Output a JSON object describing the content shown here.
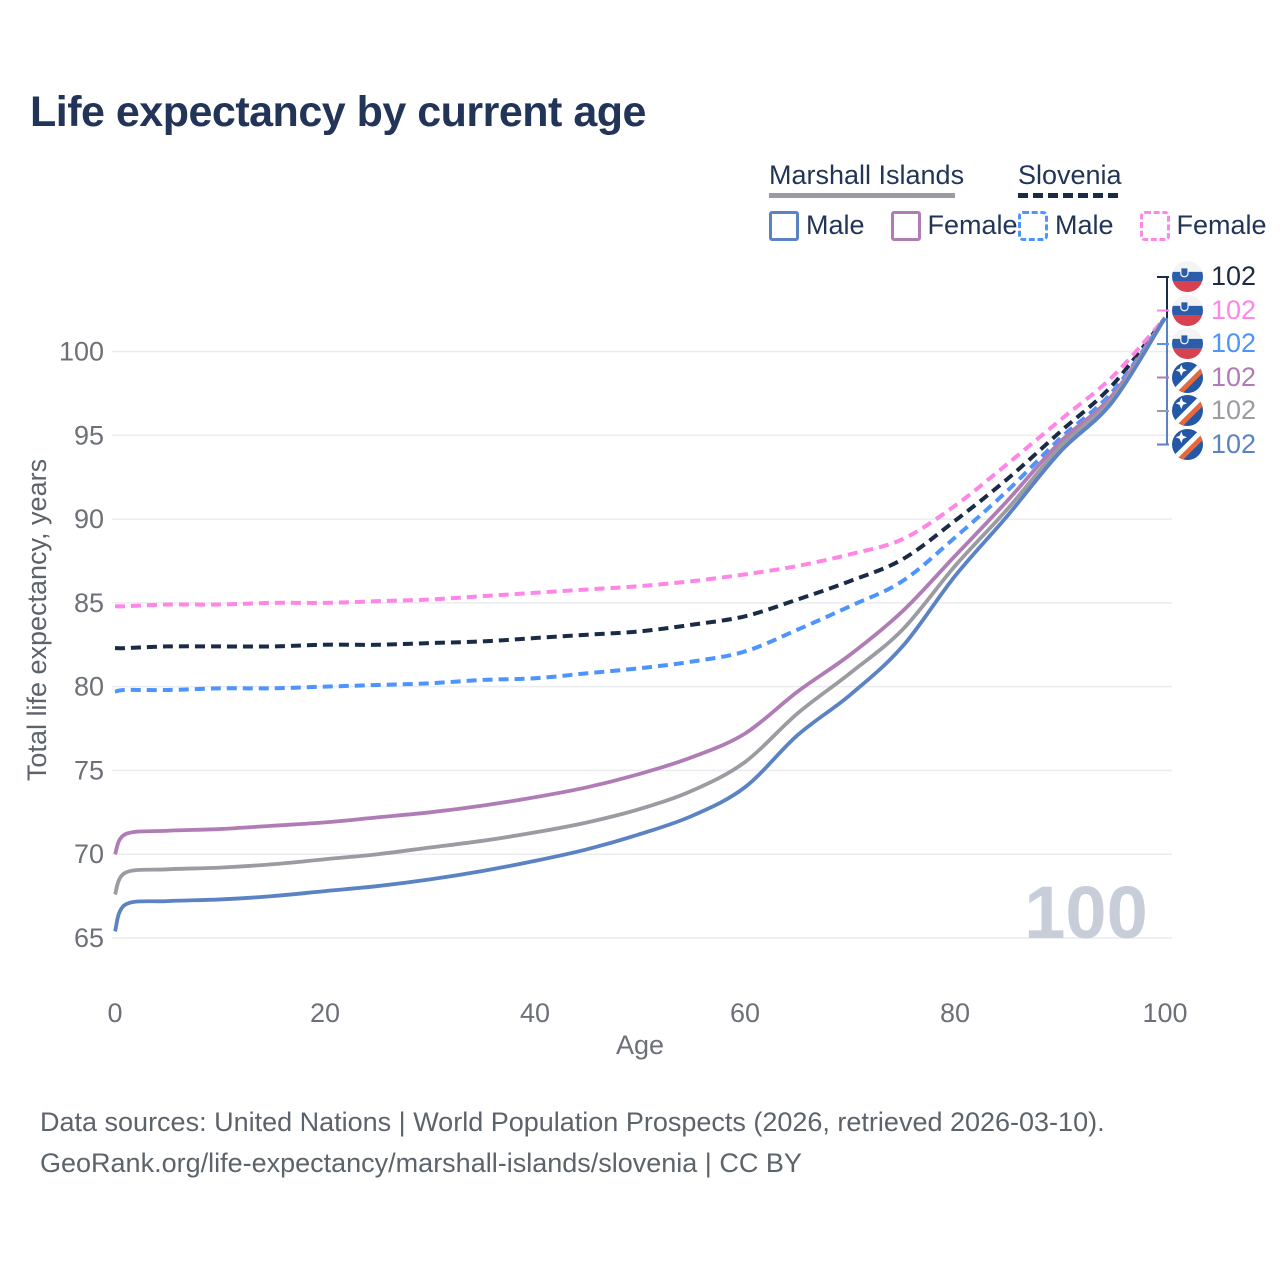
{
  "title": "Life expectancy by current age",
  "legend": {
    "marshall": {
      "label": "Marshall Islands",
      "male": "Male",
      "female": "Female"
    },
    "slovenia": {
      "label": "Slovenia",
      "male": "Male",
      "female": "Female"
    }
  },
  "watermark": "100",
  "footer": {
    "line1": "Data sources: United Nations | World Population Prospects (2026, retrieved 2026-03-10).",
    "line2": "GeoRank.org/life-expectancy/marshall-islands/slovenia | CC BY"
  },
  "colors": {
    "title_navy": "#223457",
    "tick_gray": "#6d7177",
    "axis_label_gray": "#5d636b",
    "gridline": "#ebecf0",
    "watermark_gray": "#c8cdda",
    "marshall_underline": "#9aa0a6",
    "slovenia_underline": "#1b2a45",
    "slovenia_flag": [
      "#f4f4f4",
      "#2b5dab",
      "#d8414f"
    ],
    "marshall_flag": [
      "#2457a5",
      "#ffffff",
      "#e8683a"
    ]
  },
  "chart_data": {
    "type": "line",
    "title": "Life expectancy by current age",
    "xlabel": "Age",
    "ylabel": "Total life expectancy, years",
    "xlim": [
      0,
      100
    ],
    "ylim": [
      65,
      102
    ],
    "x_ticks": [
      0,
      20,
      40,
      60,
      80,
      100
    ],
    "y_ticks": [
      65,
      70,
      75,
      80,
      85,
      90,
      95,
      100
    ],
    "grid": "horizontal-only",
    "legend_position": "top-right",
    "ages": [
      0,
      1,
      5,
      10,
      15,
      20,
      25,
      30,
      35,
      40,
      45,
      50,
      55,
      60,
      65,
      70,
      75,
      80,
      85,
      90,
      95,
      100
    ],
    "series": [
      {
        "id": "si-total",
        "name": "Slovenia — Total",
        "country": "Slovenia",
        "sex": "Total",
        "flag": "si",
        "color": "#1b2a45",
        "dashed": true,
        "end_label": "102",
        "values": [
          82.3,
          82.3,
          82.4,
          82.4,
          82.4,
          82.5,
          82.5,
          82.6,
          82.7,
          82.9,
          83.1,
          83.3,
          83.7,
          84.2,
          85.2,
          86.3,
          87.6,
          89.9,
          92.4,
          95.2,
          98.0,
          102
        ]
      },
      {
        "id": "si-female",
        "name": "Slovenia — Female",
        "country": "Slovenia",
        "sex": "Female",
        "flag": "si",
        "color": "#ff85e6",
        "dashed": true,
        "end_label": "102",
        "values": [
          84.8,
          84.8,
          84.9,
          84.9,
          85.0,
          85.0,
          85.1,
          85.2,
          85.4,
          85.6,
          85.8,
          86.0,
          86.3,
          86.7,
          87.2,
          87.9,
          88.8,
          90.8,
          93.3,
          95.9,
          98.5,
          102
        ]
      },
      {
        "id": "si-male",
        "name": "Slovenia — Male",
        "country": "Slovenia",
        "sex": "Male",
        "flag": "si",
        "color": "#4d94ff",
        "dashed": true,
        "end_label": "102",
        "values": [
          79.7,
          79.8,
          79.8,
          79.9,
          79.9,
          80.0,
          80.1,
          80.2,
          80.4,
          80.5,
          80.8,
          81.1,
          81.5,
          82.1,
          83.4,
          84.8,
          86.3,
          88.9,
          91.7,
          94.8,
          97.6,
          102
        ]
      },
      {
        "id": "mi-female",
        "name": "Marshall Islands — Female",
        "country": "Marshall Islands",
        "sex": "Female",
        "flag": "mh",
        "color": "#b07cb5",
        "dashed": false,
        "end_label": "102",
        "values": [
          70.0,
          71.2,
          71.4,
          71.5,
          71.7,
          71.9,
          72.2,
          72.5,
          72.9,
          73.4,
          74.0,
          74.8,
          75.8,
          77.2,
          79.7,
          81.9,
          84.5,
          87.8,
          91.1,
          94.6,
          97.4,
          102
        ]
      },
      {
        "id": "mi-total",
        "name": "Marshall Islands — Total",
        "country": "Marshall Islands",
        "sex": "Total",
        "flag": "mh",
        "color": "#9b9ba1",
        "dashed": false,
        "end_label": "102",
        "values": [
          67.6,
          68.9,
          69.1,
          69.2,
          69.4,
          69.7,
          70.0,
          70.4,
          70.8,
          71.3,
          71.9,
          72.7,
          73.8,
          75.5,
          78.4,
          80.8,
          83.4,
          87.2,
          90.6,
          94.3,
          97.2,
          102
        ]
      },
      {
        "id": "mi-male",
        "name": "Marshall Islands — Male",
        "country": "Marshall Islands",
        "sex": "Male",
        "flag": "mh",
        "color": "#5b82c2",
        "dashed": false,
        "end_label": "102",
        "values": [
          65.4,
          67.0,
          67.2,
          67.3,
          67.5,
          67.8,
          68.1,
          68.5,
          69.0,
          69.6,
          70.3,
          71.2,
          72.3,
          74.0,
          77.1,
          79.5,
          82.4,
          86.6,
          90.2,
          94.0,
          97.0,
          102
        ]
      }
    ]
  }
}
